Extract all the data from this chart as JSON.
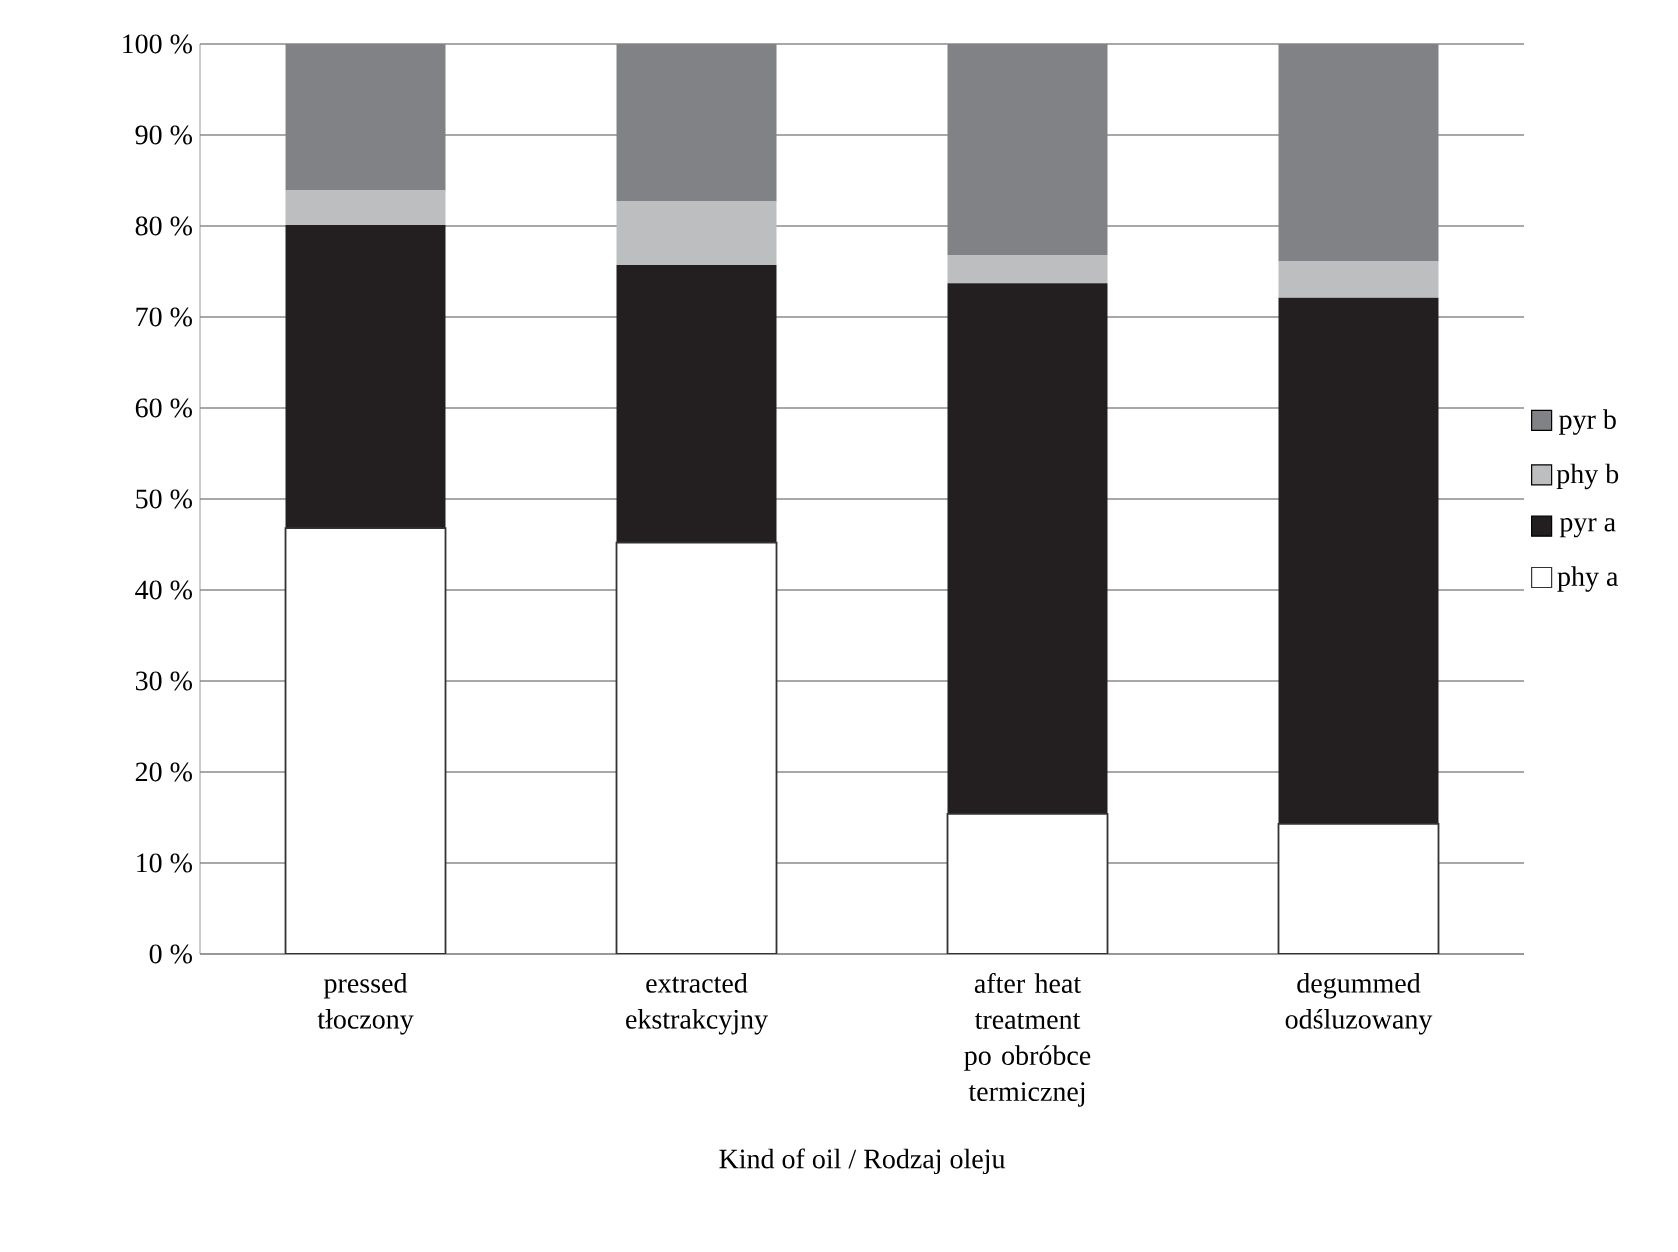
{
  "chart_data": {
    "type": "bar",
    "stacked": true,
    "xlabel": "Kind of oil / Rodzaj oleju",
    "categories": [
      "pressed tłoczony",
      "extracted ekstrakcyjny",
      "after heat treatment po obróbce termicznej",
      "degummed odśluzowany"
    ],
    "series": [
      {
        "name": "phy a",
        "color": "#ffffff",
        "values": [
          46.8,
          45.2,
          15.4,
          14.3
        ]
      },
      {
        "name": "pyr a",
        "color": "#231f20",
        "values": [
          33.3,
          30.5,
          58.3,
          57.8
        ]
      },
      {
        "name": "phy b",
        "color": "#bcbec0",
        "values": [
          3.8,
          7.0,
          3.1,
          4.0
        ]
      },
      {
        "name": "pyr b",
        "color": "#808285",
        "values": [
          16.1,
          17.3,
          23.2,
          23.9
        ]
      }
    ],
    "ylim": [
      0,
      100
    ],
    "yticks": [
      {
        "value": 0,
        "label": "0 %"
      },
      {
        "value": 10,
        "label": "10 %"
      },
      {
        "value": 20,
        "label": "20 %"
      },
      {
        "value": 30,
        "label": "30 %"
      },
      {
        "value": 40,
        "label": "40 %"
      },
      {
        "value": 50,
        "label": "50 %"
      },
      {
        "value": 60,
        "label": "60 %"
      },
      {
        "value": 70,
        "label": "70 %"
      },
      {
        "value": 80,
        "label": "80 %"
      },
      {
        "value": 90,
        "label": "90 %"
      },
      {
        "value": 100,
        "label": "100 %"
      }
    ],
    "grid": "y",
    "legend": "right"
  }
}
